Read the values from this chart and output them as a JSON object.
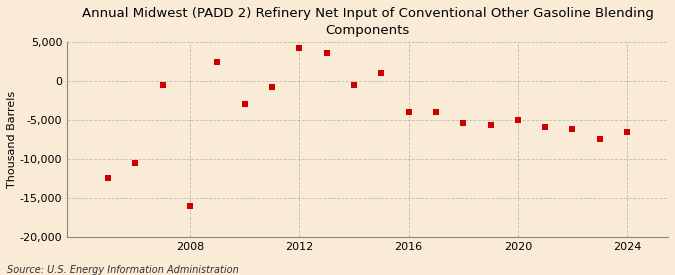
{
  "title": "Annual Midwest (PADD 2) Refinery Net Input of Conventional Other Gasoline Blending\nComponents",
  "ylabel": "Thousand Barrels",
  "source": "Source: U.S. Energy Information Administration",
  "background_color": "#faebd7",
  "plot_background_color": "#faebd7",
  "marker_color": "#cc0000",
  "marker_size": 5,
  "years": [
    2005,
    2006,
    2007,
    2008,
    2009,
    2010,
    2011,
    2012,
    2013,
    2014,
    2015,
    2016,
    2017,
    2018,
    2019,
    2020,
    2021,
    2022,
    2023,
    2024
  ],
  "values": [
    -12500,
    -10500,
    -500,
    -16000,
    2500,
    -3000,
    -700,
    4200,
    3600,
    -500,
    1000,
    -4000,
    -4000,
    -5400,
    -5700,
    -5000,
    -5900,
    -6100,
    -7500,
    -6500
  ],
  "ylim": [
    -20000,
    5000
  ],
  "yticks": [
    -20000,
    -15000,
    -10000,
    -5000,
    0,
    5000
  ],
  "xticks": [
    2008,
    2012,
    2016,
    2020,
    2024
  ],
  "xlim": [
    2003.5,
    2025.5
  ],
  "grid_color": "#b0b0b0",
  "grid_style": "--",
  "title_fontsize": 9.5,
  "axis_fontsize": 8,
  "tick_fontsize": 8,
  "source_fontsize": 7
}
